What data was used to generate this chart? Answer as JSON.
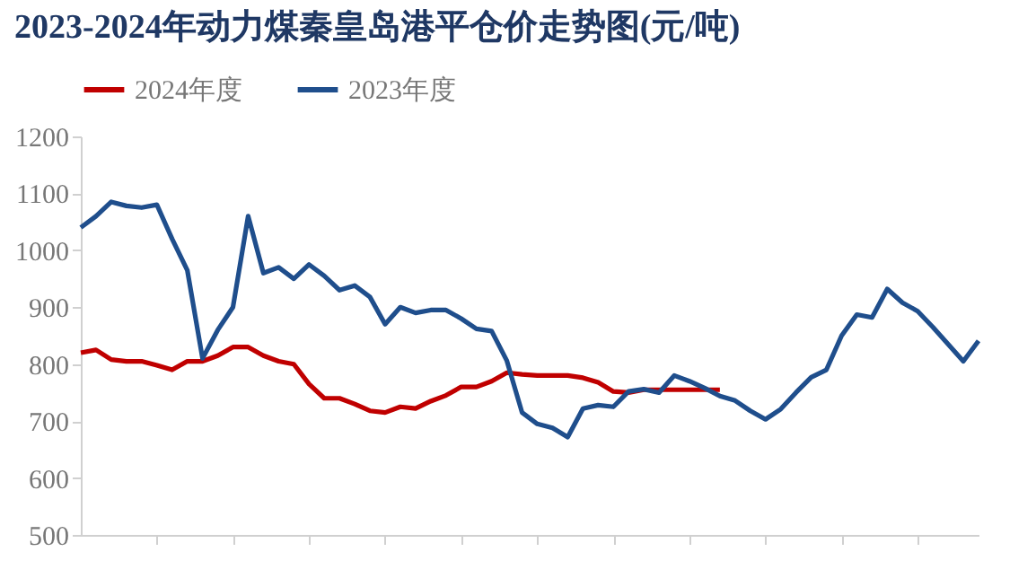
{
  "chart_data": {
    "type": "line",
    "title": "2023-2024年动力煤秦皇岛港平仓价走势图(元/吨)",
    "categories": [
      null,
      null,
      null,
      null,
      null,
      null,
      null,
      null,
      null,
      null,
      null,
      null,
      null,
      null,
      null,
      null,
      null,
      null,
      null,
      null,
      null,
      null,
      null,
      null,
      null,
      null,
      null,
      null,
      null,
      null,
      null,
      null,
      null,
      null,
      null,
      null,
      null,
      null,
      null,
      null,
      null,
      null,
      null,
      null,
      null,
      null,
      null,
      null,
      null,
      null,
      null,
      null,
      null,
      null,
      null,
      null,
      null,
      null,
      null,
      null
    ],
    "series": [
      {
        "name": "2024年度",
        "color": "#c00000",
        "values": [
          820,
          825,
          808,
          805,
          805,
          798,
          790,
          805,
          805,
          815,
          830,
          830,
          815,
          805,
          800,
          765,
          740,
          740,
          730,
          718,
          715,
          725,
          722,
          735,
          745,
          760,
          760,
          770,
          785,
          782,
          780,
          780,
          780,
          776,
          768,
          752,
          750,
          755,
          755,
          755,
          755,
          755,
          755,
          null,
          null,
          null,
          null,
          null,
          null,
          null,
          null,
          null,
          null,
          null,
          null,
          null,
          null,
          null,
          null,
          null
        ]
      },
      {
        "name": "2023年度",
        "color": "#1f4e8c",
        "values": [
          1040,
          1060,
          1085,
          1078,
          1075,
          1080,
          1020,
          965,
          810,
          860,
          900,
          1060,
          960,
          970,
          950,
          975,
          955,
          930,
          938,
          918,
          870,
          900,
          890,
          895,
          895,
          880,
          862,
          858,
          806,
          715,
          695,
          688,
          672,
          722,
          728,
          725,
          752,
          756,
          750,
          780,
          770,
          758,
          744,
          736,
          718,
          703,
          721,
          750,
          777,
          790,
          850,
          887,
          882,
          932,
          908,
          893,
          865,
          835,
          805,
          841
        ]
      }
    ],
    "ylim": [
      500,
      1200
    ],
    "yticks": [
      500,
      600,
      700,
      800,
      900,
      1000,
      1100,
      1200
    ],
    "legend": "top",
    "tick_labels": "y",
    "line_style": "solid",
    "marker": "none"
  }
}
